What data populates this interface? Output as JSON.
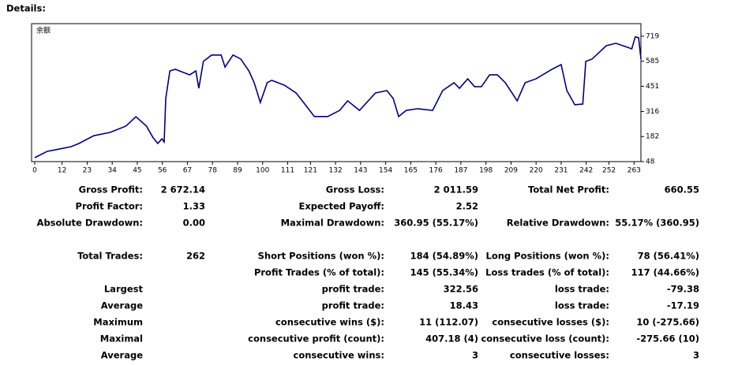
{
  "header": {
    "title": "Details:"
  },
  "chart_data": {
    "type": "line",
    "label": "余额",
    "x": [
      0,
      5.5,
      9,
      16,
      19.4,
      26,
      33,
      40,
      44.4,
      49,
      52,
      54,
      55.8,
      56.8,
      57.5,
      59.3,
      61.7,
      68,
      70.7,
      72,
      74,
      77.6,
      81.8,
      83.5,
      87,
      90.4,
      94,
      96.3,
      99,
      102,
      104,
      109.5,
      114.7,
      118,
      122.7,
      128.6,
      133.8,
      137.3,
      142.5,
      149.5,
      154.5,
      157.3,
      159.7,
      163,
      168,
      174.6,
      179,
      184,
      186.4,
      190,
      193,
      196,
      199.6,
      203,
      206.5,
      211.7,
      215.2,
      220,
      227,
      231,
      233.5,
      237,
      240.5,
      241.8,
      244.6,
      250.8,
      255,
      260,
      262,
      263.5,
      265,
      266
    ],
    "series": [
      {
        "name": "余额",
        "color": "#000080",
        "values": [
          69,
          103,
          111,
          128,
          145,
          187,
          204,
          238,
          288,
          238,
          175,
          145,
          170,
          153,
          386,
          533,
          542,
          512,
          533,
          440,
          584,
          618,
          618,
          554,
          618,
          597,
          533,
          470,
          364,
          470,
          483,
          457,
          415,
          364,
          289,
          289,
          322,
          373,
          322,
          415,
          428,
          386,
          289,
          322,
          331,
          322,
          428,
          470,
          440,
          491,
          449,
          449,
          512,
          512,
          470,
          373,
          470,
          491,
          542,
          567,
          428,
          352,
          356,
          584,
          597,
          668,
          681,
          660,
          651,
          715,
          711,
          597
        ]
      }
    ],
    "xlim": [
      0,
      266
    ],
    "ylim": [
      48,
      786
    ],
    "xticks": [
      0,
      12,
      23,
      34,
      45,
      56,
      67,
      78,
      89,
      100,
      111,
      121,
      132,
      143,
      154,
      165,
      176,
      187,
      198,
      209,
      220,
      231,
      242,
      252,
      263
    ],
    "yticks": [
      48,
      182,
      316,
      451,
      585,
      719
    ]
  },
  "stats": {
    "rows": [
      [
        "Gross Profit:",
        "2 672.14",
        "Gross Loss:",
        "2 011.59",
        "Total Net Profit:",
        "660.55"
      ],
      [
        "Profit Factor:",
        "1.33",
        "Expected Payoff:",
        "2.52",
        null,
        null
      ],
      [
        "Absolute Drawdown:",
        "0.00",
        "Maximal Drawdown:",
        "360.95 (55.17%)",
        "Relative Drawdown:",
        "55.17% (360.95)"
      ],
      [
        "Total Trades:",
        "262",
        "Short Positions (won %):",
        "184 (54.89%)",
        "Long Positions (won %):",
        "78 (56.41%)"
      ],
      [
        null,
        null,
        "Profit Trades (% of total):",
        "145 (55.34%)",
        "Loss trades (% of total):",
        "117 (44.66%)"
      ],
      [
        "Largest",
        null,
        "profit trade:",
        "322.56",
        "loss trade:",
        "-79.38"
      ],
      [
        "Average",
        null,
        "profit trade:",
        "18.43",
        "loss trade:",
        "-17.19"
      ],
      [
        "Maximum",
        null,
        "consecutive wins ($):",
        "11 (112.07)",
        "consecutive losses ($):",
        "10 (-275.66)"
      ],
      [
        "Maximal",
        null,
        "consecutive profit (count):",
        "407.18 (4)",
        "consecutive loss (count):",
        "-275.66 (10)"
      ],
      [
        "Average",
        null,
        "consecutive wins:",
        "3",
        "consecutive losses:",
        "3"
      ]
    ]
  }
}
